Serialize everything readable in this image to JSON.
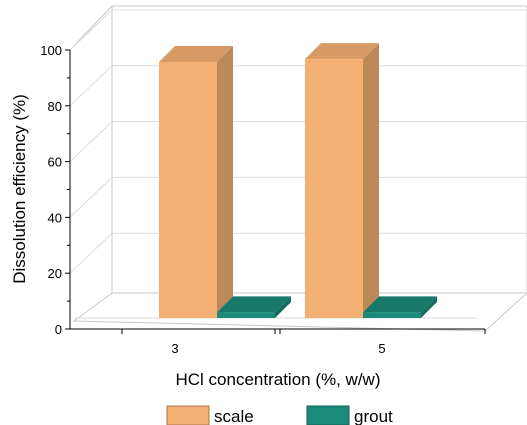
{
  "chart_data": {
    "type": "bar",
    "categories": [
      "3",
      "5"
    ],
    "series": [
      {
        "name": "scale",
        "values": [
          91,
          92
        ],
        "color": "#f4af72"
      },
      {
        "name": "grout",
        "values": [
          2,
          2
        ],
        "color": "#1b8a7a"
      }
    ],
    "xlabel": "HCl concentration (%, w/w)",
    "ylabel": "Dissolution efficiency (%)",
    "ylim": [
      0,
      100
    ],
    "yticks": [
      "0",
      "20",
      "40",
      "60",
      "80",
      "100"
    ],
    "grid": true,
    "legend_position": "bottom",
    "style": "3d"
  }
}
